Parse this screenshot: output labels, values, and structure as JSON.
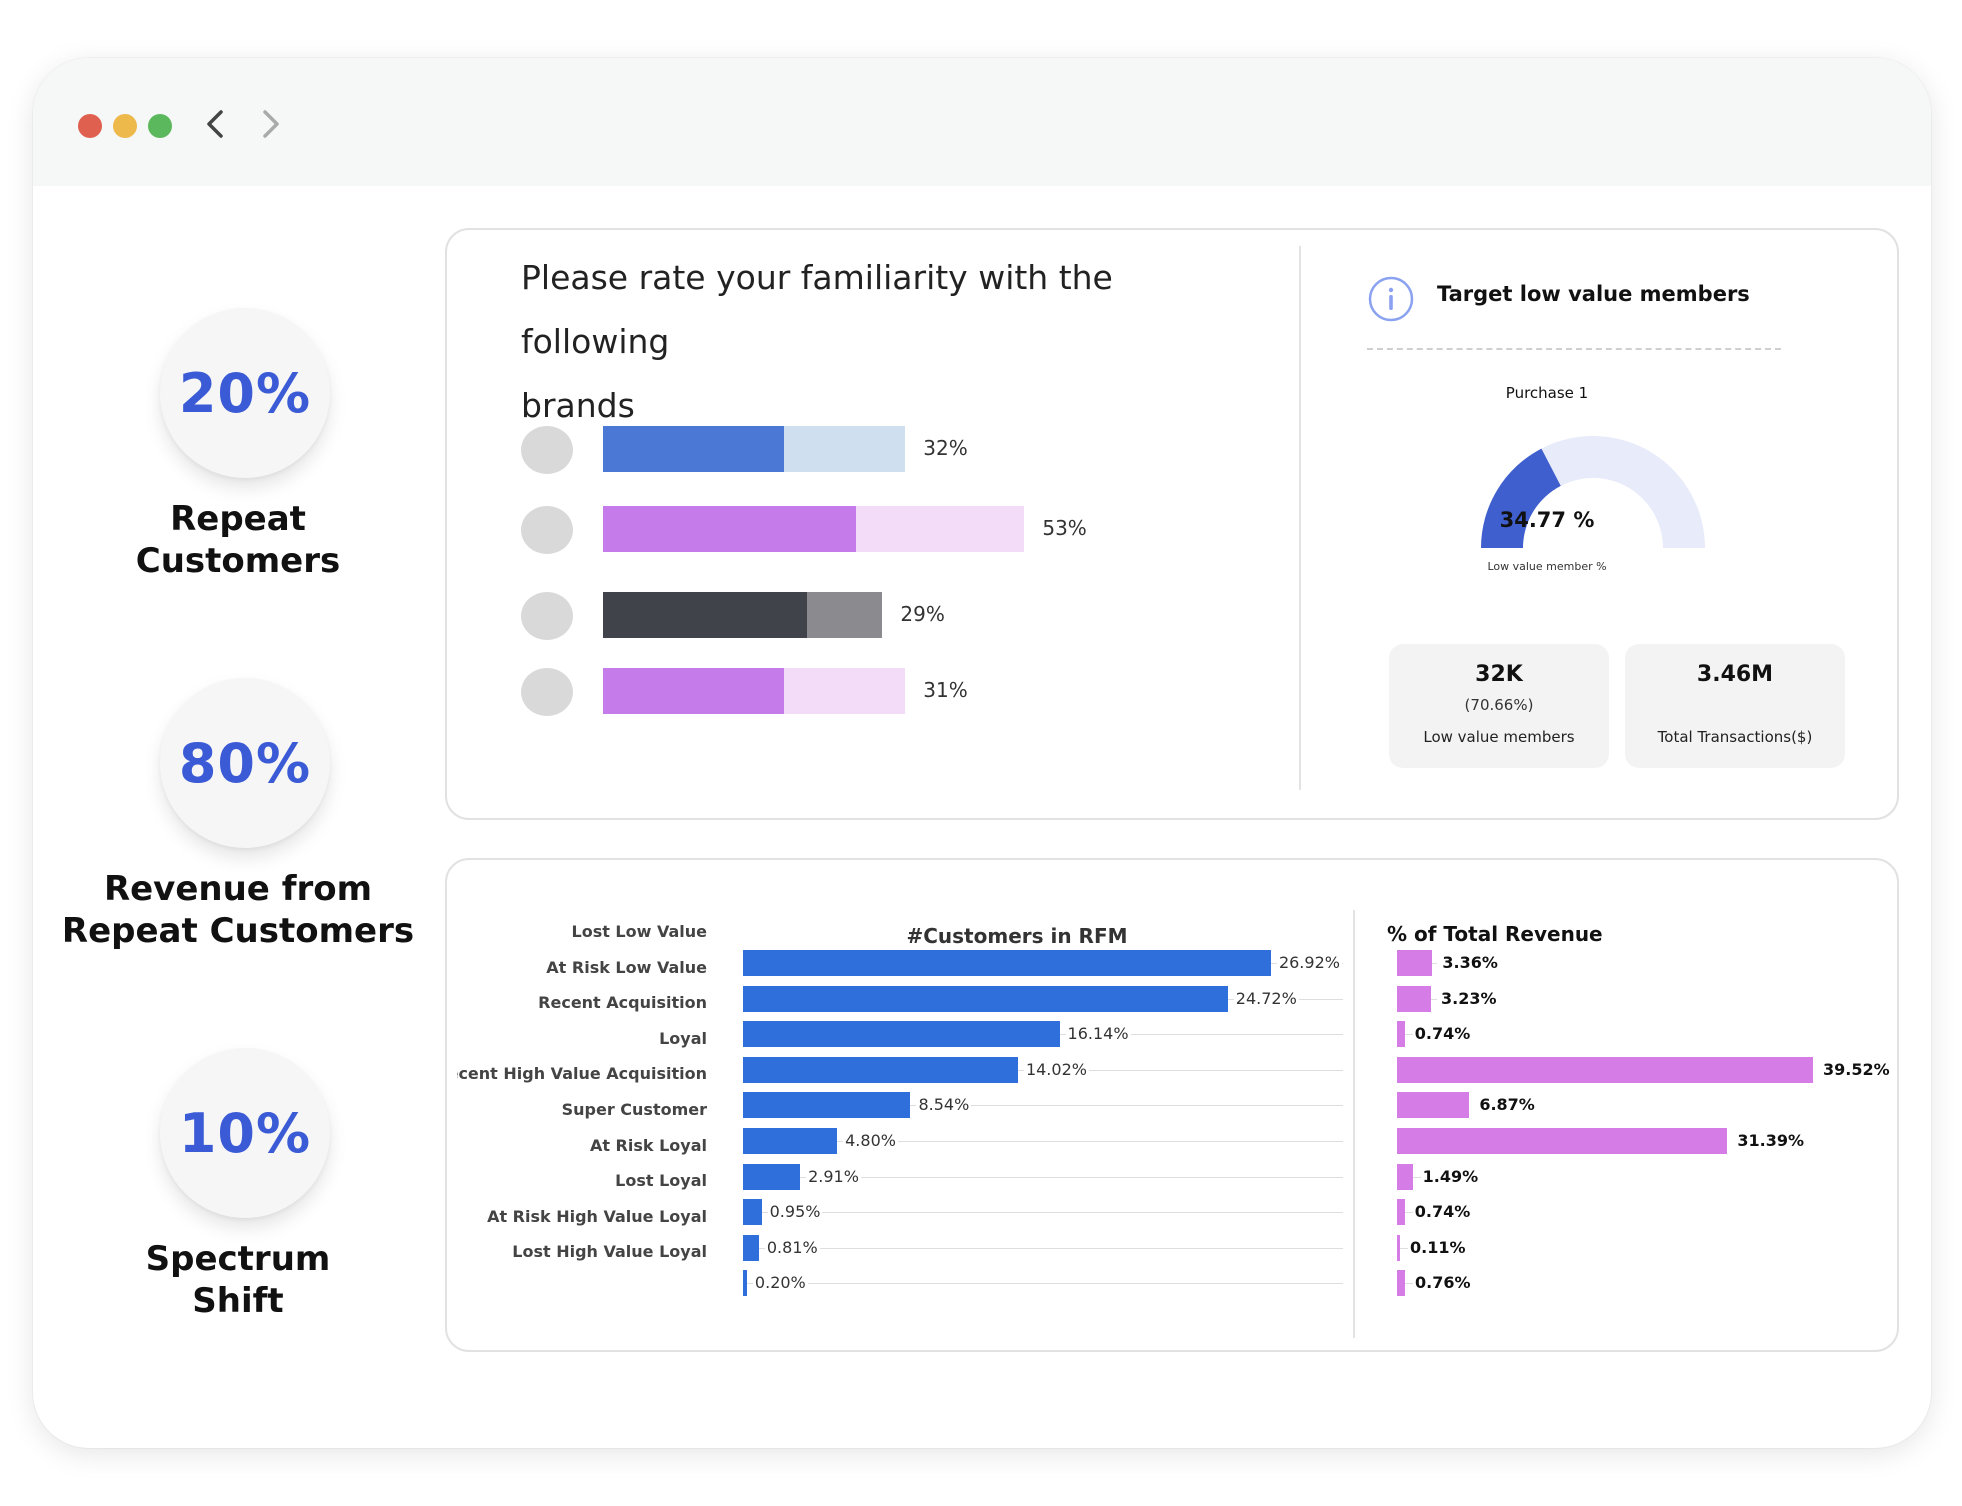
{
  "window": {
    "controls": [
      "close",
      "minimize",
      "maximize"
    ],
    "nav": {
      "back_icon": "chevron-left-icon",
      "forward_icon": "chevron-right-icon"
    }
  },
  "stats": [
    {
      "value": "20%",
      "label_lines": [
        "Repeat",
        "Customers"
      ]
    },
    {
      "value": "80%",
      "label_lines": [
        "Revenue from",
        "Repeat Customers"
      ]
    },
    {
      "value": "10%",
      "label_lines": [
        "Spectrum",
        "Shift"
      ]
    }
  ],
  "survey": {
    "title_lines": [
      "Please rate your familiarity with the following",
      "brands"
    ],
    "colors": {
      "blue": "#4a78d4",
      "blue_light": "#cfdff0",
      "purple": "#c57be9",
      "purple_light": "#f3dcf8",
      "dark": "#40434a",
      "dark_light": "#8b8b8f"
    },
    "brands": [
      {
        "percent": 32,
        "label": "32%",
        "track": 0.66,
        "color": "#4a78d4",
        "track_color": "#cfdff0"
      },
      {
        "percent": 53,
        "label": "53%",
        "track": 0.92,
        "color": "#c57be9",
        "track_color": "#f3dcf8"
      },
      {
        "percent": 29,
        "label": "29%",
        "track": 0.61,
        "color": "#40434a",
        "track_color": "#8b8b8f"
      },
      {
        "percent": 31,
        "label": "31%",
        "track": 0.66,
        "color": "#c57be9",
        "track_color": "#f3dcf8"
      }
    ]
  },
  "target": {
    "icon": "info-icon",
    "title": "Target low value members",
    "gauge": {
      "title": "Purchase 1",
      "value": 34.77,
      "value_label": "34.77 %",
      "subtitle": "Low value member %",
      "fill_color": "#3f5fcf",
      "track_color": "#e7ebfa"
    },
    "metrics": [
      {
        "value": "32K",
        "sub": "(70.66%)",
        "label": "Low value members"
      },
      {
        "value": "3.46M",
        "sub": "",
        "label": "Total Transactions($)"
      }
    ]
  },
  "chart_data": [
    {
      "type": "bar",
      "orientation": "horizontal",
      "title": "#Customers in RFM Segments",
      "categories": [
        "Lost Low Value",
        "At Risk Low Value",
        "Recent Acquisition",
        "Loyal",
        "Recent High Value Acquisition",
        "Super Customer",
        "At Risk Loyal",
        "Lost Loyal",
        "At Risk High Value Loyal",
        "Lost High Value Loyal"
      ],
      "category_labels": [
        "Lost Low Value",
        "At Risk Low Value",
        "Recent Acquisition",
        "Loyal",
        "ecent High Value Acquisition",
        "Super Customer",
        "At Risk Loyal",
        "Lost Loyal",
        "At Risk High Value Loyal",
        "Lost High Value Loyal"
      ],
      "values": [
        26.92,
        24.72,
        16.14,
        14.02,
        8.54,
        4.8,
        2.91,
        0.95,
        0.81,
        0.2
      ],
      "value_labels": [
        "26.92%",
        "24.72%",
        "16.14%",
        "14.02%",
        "8.54%",
        "4.80%",
        "2.91%",
        "0.95%",
        "0.81%",
        "0.20%"
      ],
      "color": "#2f6fdc",
      "xlim": [
        0,
        28
      ]
    },
    {
      "type": "bar",
      "orientation": "horizontal",
      "title": "% of Total Revenue",
      "categories": [
        "Lost Low Value",
        "At Risk Low Value",
        "Recent Acquisition",
        "Loyal",
        "Recent High Value Acquisition",
        "Super Customer",
        "At Risk Loyal",
        "Lost Loyal",
        "At Risk High Value Loyal",
        "Lost High Value Loyal"
      ],
      "values": [
        3.36,
        3.23,
        0.74,
        39.52,
        6.87,
        31.39,
        1.49,
        0.74,
        0.11,
        0.76
      ],
      "value_labels": [
        "3.36%",
        "3.23%",
        "0.74%",
        "39.52%",
        "6.87%",
        "31.39%",
        "1.49%",
        "0.74%",
        "0.11%",
        "0.76%"
      ],
      "color": "#d57ce6",
      "xlim": [
        0,
        39.52
      ]
    }
  ]
}
